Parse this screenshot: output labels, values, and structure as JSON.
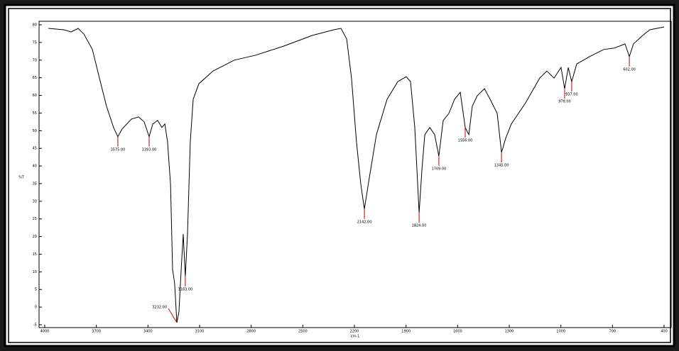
{
  "chart_data": {
    "type": "line",
    "x_label": "cm-1",
    "y_label": "%T",
    "xlim": [
      4000,
      400
    ],
    "ylim": [
      -5,
      80
    ],
    "xticks": [
      4000,
      3700,
      3400,
      3100,
      2800,
      2500,
      2200,
      1900,
      1600,
      1300,
      1000,
      700,
      400
    ],
    "yticks": [
      -5,
      0,
      5,
      10,
      15,
      20,
      25,
      30,
      35,
      40,
      45,
      50,
      55,
      60,
      65,
      70,
      75,
      80
    ],
    "color": "#000000",
    "annotation_color": "#c00000",
    "x": [
      3979,
      3889,
      3847,
      3806,
      3773,
      3723,
      3682,
      3641,
      3600,
      3575,
      3550,
      3496,
      3455,
      3422,
      3393,
      3372,
      3344,
      3319,
      3302,
      3286,
      3269,
      3257,
      3245,
      3232,
      3220,
      3207,
      3195,
      3183,
      3170,
      3154,
      3137,
      3104,
      3022,
      2898,
      2774,
      2609,
      2444,
      2320,
      2278,
      2245,
      2217,
      2188,
      2163,
      2142,
      2113,
      2072,
      2010,
      1948,
      1899,
      1874,
      1849,
      1824,
      1808,
      1791,
      1762,
      1734,
      1709,
      1684,
      1651,
      1618,
      1585,
      1556,
      1535,
      1515,
      1486,
      1444,
      1411,
      1370,
      1345,
      1321,
      1288,
      1205,
      1123,
      1081,
      1040,
      999,
      978,
      957,
      937,
      908,
      833,
      751,
      689,
      627,
      602,
      578,
      524,
      483,
      400
    ],
    "y": [
      79.0,
      78.6,
      78.0,
      79.0,
      77.4,
      73.0,
      64.9,
      56.9,
      50.9,
      48.3,
      50.5,
      53.3,
      53.9,
      52.5,
      48.3,
      51.9,
      52.9,
      50.9,
      51.9,
      46.8,
      34.8,
      10.7,
      6.7,
      -4.4,
      -1.4,
      10.7,
      20.7,
      8.7,
      20.7,
      46.8,
      58.9,
      63.3,
      66.9,
      70.0,
      71.4,
      74.0,
      77.0,
      78.6,
      79.0,
      76.0,
      64.9,
      46.8,
      34.8,
      27.8,
      36.8,
      48.9,
      58.9,
      63.9,
      65.3,
      63.9,
      50.9,
      26.7,
      38.8,
      48.9,
      50.9,
      48.9,
      42.8,
      52.9,
      54.9,
      58.9,
      60.9,
      50.9,
      48.9,
      56.9,
      59.9,
      61.9,
      58.9,
      54.9,
      43.8,
      47.8,
      51.9,
      57.9,
      64.9,
      66.9,
      64.9,
      67.9,
      61.9,
      67.9,
      63.9,
      68.9,
      71.0,
      73.0,
      73.4,
      74.6,
      71.0,
      74.6,
      77.0,
      78.6,
      79.4
    ],
    "annotations": [
      {
        "x": 3575,
        "y": 48.3,
        "label": "3575.00"
      },
      {
        "x": 3393,
        "y": 48.3,
        "label": "3393.00"
      },
      {
        "x": 3232,
        "y": -4.4,
        "label": "3232.00"
      },
      {
        "x": 3183,
        "y": 8.7,
        "label": "3183.00"
      },
      {
        "x": 2142,
        "y": 27.8,
        "label": "2142.00"
      },
      {
        "x": 1824,
        "y": 26.7,
        "label": "1824.00"
      },
      {
        "x": 1709,
        "y": 42.8,
        "label": "1709.00"
      },
      {
        "x": 1556,
        "y": 50.9,
        "label": "1556.00"
      },
      {
        "x": 1345,
        "y": 43.8,
        "label": "1345.00"
      },
      {
        "x": 978,
        "y": 61.9,
        "label": "978.00"
      },
      {
        "x": 937,
        "y": 63.9,
        "label": "937.00"
      },
      {
        "x": 602,
        "y": 71.0,
        "label": "602.00"
      }
    ]
  }
}
